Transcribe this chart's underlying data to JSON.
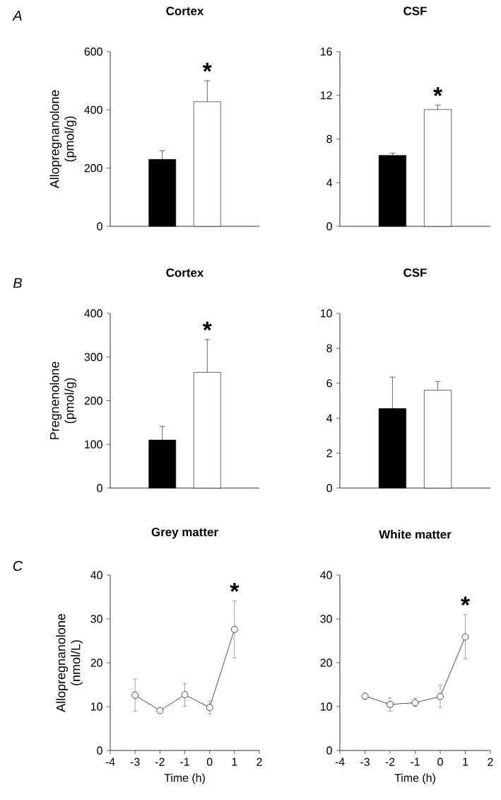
{
  "chart_data": [
    {
      "type": "bar",
      "title": "Cortex",
      "ylabel": "Allopregnanolone (pmol/g)",
      "categories": [
        null,
        null
      ],
      "values": [
        230,
        428
      ],
      "colors": [
        "#000000",
        "#ffffff"
      ],
      "errors": [
        [
          230,
          260
        ],
        [
          428,
          500
        ]
      ],
      "ylim": [
        0,
        600
      ],
      "yticks": [
        0,
        200,
        400,
        600
      ],
      "annotations": [
        "A",
        "*"
      ]
    },
    {
      "type": "bar",
      "title": "CSF",
      "categories": [
        null,
        null
      ],
      "values": [
        6.5,
        10.7
      ],
      "colors": [
        "#000000",
        "#ffffff"
      ],
      "errors": [
        [
          6.5,
          6.7
        ],
        [
          10.7,
          11.1
        ]
      ],
      "ylim": [
        0,
        16
      ],
      "yticks": [
        0,
        4,
        8,
        12,
        16
      ],
      "annotations": [
        "*"
      ]
    },
    {
      "type": "bar",
      "title": "Cortex",
      "ylabel": "Pregnenolone (pmol/g)",
      "categories": [
        null,
        null
      ],
      "values": [
        110,
        265
      ],
      "colors": [
        "#000000",
        "#ffffff"
      ],
      "errors": [
        [
          110,
          141
        ],
        [
          265,
          340
        ]
      ],
      "ylim": [
        0,
        400
      ],
      "yticks": [
        0,
        100,
        200,
        300,
        400
      ],
      "annotations": [
        "B",
        "*"
      ]
    },
    {
      "type": "bar",
      "title": "CSF",
      "categories": [
        null,
        null
      ],
      "values": [
        4.55,
        5.6
      ],
      "colors": [
        "#000000",
        "#ffffff"
      ],
      "errors": [
        [
          4.55,
          6.35
        ],
        [
          5.6,
          6.1
        ]
      ],
      "ylim": [
        0,
        10
      ],
      "yticks": [
        0,
        2,
        4,
        6,
        8,
        10
      ]
    },
    {
      "type": "line",
      "title": "Grey matter",
      "xlabel": "Time (h)",
      "ylabel": "Allopregnanolone (nmol/L)",
      "x": [
        -3,
        -2,
        -1,
        0,
        1
      ],
      "values": [
        12.6,
        9.1,
        12.7,
        9.8,
        27.6
      ],
      "errors": [
        [
          8.9,
          16.3
        ],
        null,
        [
          10.1,
          15.3
        ],
        [
          8.3,
          11.3
        ],
        [
          21.1,
          34.1
        ]
      ],
      "color": "#000000",
      "marker": "circle",
      "xlim": [
        -4,
        2
      ],
      "xticks": [
        -4,
        -3,
        -2,
        -1,
        0,
        1,
        2
      ],
      "ylim": [
        0,
        40
      ],
      "yticks": [
        0,
        10,
        20,
        30,
        40
      ],
      "annotations": [
        "C",
        "*"
      ]
    },
    {
      "type": "line",
      "title": "White matter",
      "xlabel": "Time (h)",
      "x": [
        -3,
        -2,
        -1,
        0,
        1
      ],
      "values": [
        12.4,
        10.5,
        10.9,
        12.3,
        25.9
      ],
      "errors": [
        [
          11.7,
          13.0
        ],
        [
          9.0,
          12.0
        ],
        [
          10.0,
          11.9
        ],
        [
          9.8,
          14.9
        ],
        [
          20.9,
          31.0
        ]
      ],
      "color": "#000000",
      "marker": "circle",
      "xlim": [
        -4,
        2
      ],
      "xticks": [
        -4,
        -3,
        -2,
        -1,
        0,
        1,
        2
      ],
      "ylim": [
        0,
        40
      ],
      "yticks": [
        0,
        10,
        20,
        30,
        40
      ],
      "annotations": [
        "*"
      ]
    }
  ]
}
